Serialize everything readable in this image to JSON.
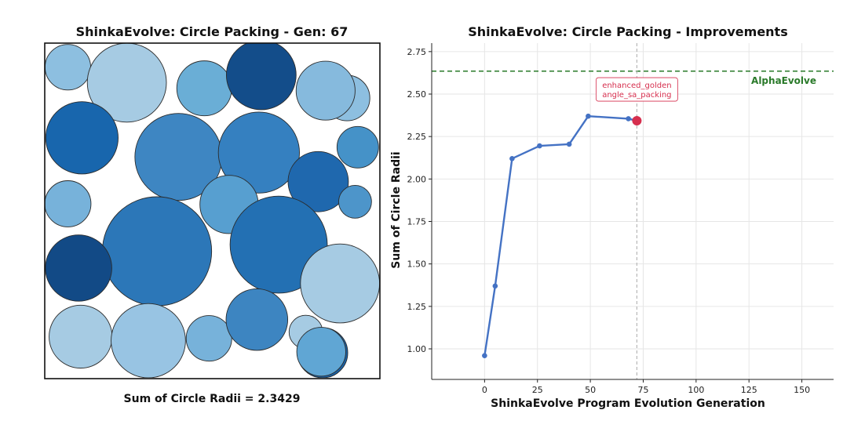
{
  "chart_data": [
    {
      "type": "scatter",
      "subtype": "circle-packing",
      "title": "ShinkaEvolve: Circle Packing - Gen:  67",
      "footer": "Sum of Circle Radii = 2.3429",
      "domain": [
        0,
        1
      ],
      "circles": [
        {
          "x": 0.069,
          "y": 0.928,
          "r": 0.068,
          "color": "#8dbfe0"
        },
        {
          "x": 0.245,
          "y": 0.882,
          "r": 0.118,
          "color": "#a6cbe3"
        },
        {
          "x": 0.476,
          "y": 0.865,
          "r": 0.082,
          "color": "#6aaed6"
        },
        {
          "x": 0.646,
          "y": 0.905,
          "r": 0.104,
          "color": "#134d8a"
        },
        {
          "x": 0.902,
          "y": 0.836,
          "r": 0.068,
          "color": "#8dbfe0"
        },
        {
          "x": 0.838,
          "y": 0.858,
          "r": 0.088,
          "color": "#86badd"
        },
        {
          "x": 0.111,
          "y": 0.717,
          "r": 0.108,
          "color": "#1866ad"
        },
        {
          "x": 0.399,
          "y": 0.66,
          "r": 0.13,
          "color": "#3e86c2"
        },
        {
          "x": 0.639,
          "y": 0.673,
          "r": 0.121,
          "color": "#3580c0"
        },
        {
          "x": 0.816,
          "y": 0.586,
          "r": 0.09,
          "color": "#1f68ae"
        },
        {
          "x": 0.934,
          "y": 0.689,
          "r": 0.062,
          "color": "#4592c8"
        },
        {
          "x": 0.069,
          "y": 0.52,
          "r": 0.069,
          "color": "#77b2da"
        },
        {
          "x": 0.926,
          "y": 0.526,
          "r": 0.049,
          "color": "#4d95ca"
        },
        {
          "x": 0.55,
          "y": 0.518,
          "r": 0.087,
          "color": "#579fd0"
        },
        {
          "x": 0.335,
          "y": 0.378,
          "r": 0.163,
          "color": "#2c77b8"
        },
        {
          "x": 0.698,
          "y": 0.398,
          "r": 0.145,
          "color": "#2370b3"
        },
        {
          "x": 0.101,
          "y": 0.328,
          "r": 0.099,
          "color": "#124a86"
        },
        {
          "x": 0.881,
          "y": 0.282,
          "r": 0.118,
          "color": "#a6cbe3"
        },
        {
          "x": 0.107,
          "y": 0.123,
          "r": 0.094,
          "color": "#a6cbe3"
        },
        {
          "x": 0.309,
          "y": 0.111,
          "r": 0.111,
          "color": "#98c4e3"
        },
        {
          "x": 0.49,
          "y": 0.118,
          "r": 0.068,
          "color": "#77b2da"
        },
        {
          "x": 0.633,
          "y": 0.174,
          "r": 0.092,
          "color": "#3d85c1"
        },
        {
          "x": 0.779,
          "y": 0.137,
          "r": 0.05,
          "color": "#a6cbe3"
        },
        {
          "x": 0.829,
          "y": 0.075,
          "r": 0.075,
          "color": "#1a62a6"
        },
        {
          "x": 0.825,
          "y": 0.078,
          "r": 0.073,
          "color": "#60a6d4"
        }
      ]
    },
    {
      "type": "line",
      "title": "ShinkaEvolve: Circle Packing - Improvements",
      "xlabel": "ShinkaEvolve Program Evolution Generation",
      "ylabel": "Sum of Circle Radii",
      "xlim": [
        -25,
        165
      ],
      "ylim": [
        0.82,
        2.8
      ],
      "xticks": [
        0,
        25,
        50,
        75,
        100,
        125,
        150
      ],
      "yticks": [
        1.0,
        1.25,
        1.5,
        1.75,
        2.0,
        2.25,
        2.5,
        2.75
      ],
      "grid": true,
      "series": [
        {
          "x": [
            0,
            5,
            13,
            26,
            40,
            49,
            68,
            72
          ],
          "y": [
            0.96,
            1.37,
            2.12,
            2.195,
            2.205,
            2.37,
            2.355,
            2.3429
          ],
          "color": "#4472c4"
        }
      ],
      "highlight": {
        "x": 72,
        "y": 2.3429,
        "color": "#d62f4e",
        "label_line1": "enhanced_golden",
        "label_line2": "angle_sa_packing"
      },
      "reference_line": {
        "y": 2.635,
        "label": "AlphaEvolve",
        "color": "#2a7a2a"
      },
      "vline": {
        "x": 72,
        "color": "#b8b8b8"
      }
    }
  ]
}
